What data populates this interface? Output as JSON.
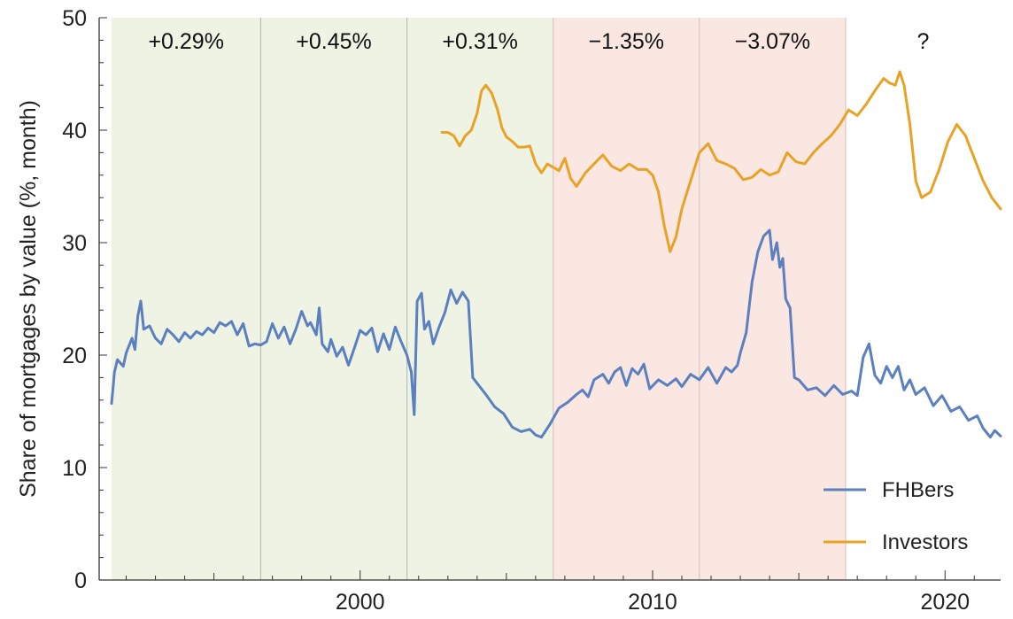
{
  "chart_data": {
    "type": "line",
    "ylabel": "Share of mortgages by value (%, month)",
    "xlim": [
      1991.5,
      2021.9
    ],
    "ylim": [
      0,
      50
    ],
    "yticks": [
      0,
      10,
      20,
      30,
      40,
      50
    ],
    "xticks_labeled": [
      2000,
      2010,
      2020
    ],
    "legend_position": "bottom-right",
    "colors": {
      "fhb": "#5b7fbf",
      "investors": "#e8a227",
      "green_band": "#eef3e4",
      "red_band": "#fbe7e2",
      "divider": "#b9c2ae"
    },
    "bands": [
      {
        "start": 1991.5,
        "end": 1996.6,
        "label": "+0.29%",
        "tone": "green"
      },
      {
        "start": 1996.6,
        "end": 2001.6,
        "label": "+0.45%",
        "tone": "green"
      },
      {
        "start": 2001.6,
        "end": 2006.6,
        "label": "+0.31%",
        "tone": "green"
      },
      {
        "start": 2006.6,
        "end": 2011.6,
        "label": "−1.35%",
        "tone": "red"
      },
      {
        "start": 2011.6,
        "end": 2016.6,
        "label": "−3.07%",
        "tone": "red"
      },
      {
        "start": 2016.6,
        "end": 2021.9,
        "label": "?",
        "tone": "none"
      }
    ],
    "series": [
      {
        "name": "FHBers",
        "color": "#5b7fbf",
        "points": [
          [
            1991.5,
            15.7
          ],
          [
            1991.6,
            18.5
          ],
          [
            1991.7,
            19.6
          ],
          [
            1991.9,
            19.0
          ],
          [
            1992.0,
            20.2
          ],
          [
            1992.2,
            21.5
          ],
          [
            1992.3,
            20.5
          ],
          [
            1992.4,
            23.5
          ],
          [
            1992.5,
            24.8
          ],
          [
            1992.6,
            22.3
          ],
          [
            1992.8,
            22.6
          ],
          [
            1993.0,
            21.5
          ],
          [
            1993.2,
            21.0
          ],
          [
            1993.4,
            22.3
          ],
          [
            1993.6,
            21.8
          ],
          [
            1993.8,
            21.2
          ],
          [
            1994.0,
            22.0
          ],
          [
            1994.2,
            21.5
          ],
          [
            1994.4,
            22.1
          ],
          [
            1994.6,
            21.8
          ],
          [
            1994.8,
            22.4
          ],
          [
            1995.0,
            22.0
          ],
          [
            1995.2,
            22.9
          ],
          [
            1995.4,
            22.6
          ],
          [
            1995.6,
            23.0
          ],
          [
            1995.8,
            21.8
          ],
          [
            1996.0,
            22.8
          ],
          [
            1996.2,
            20.8
          ],
          [
            1996.4,
            21.0
          ],
          [
            1996.6,
            20.9
          ],
          [
            1996.8,
            21.2
          ],
          [
            1997.0,
            22.8
          ],
          [
            1997.2,
            21.5
          ],
          [
            1997.4,
            22.5
          ],
          [
            1997.6,
            21.0
          ],
          [
            1997.8,
            22.3
          ],
          [
            1998.0,
            23.9
          ],
          [
            1998.2,
            22.6
          ],
          [
            1998.3,
            22.9
          ],
          [
            1998.5,
            21.8
          ],
          [
            1998.6,
            24.2
          ],
          [
            1998.7,
            21.0
          ],
          [
            1998.9,
            20.3
          ],
          [
            1999.0,
            21.4
          ],
          [
            1999.2,
            19.9
          ],
          [
            1999.4,
            20.7
          ],
          [
            1999.6,
            19.1
          ],
          [
            1999.8,
            20.6
          ],
          [
            2000.0,
            22.2
          ],
          [
            2000.2,
            21.8
          ],
          [
            2000.4,
            22.4
          ],
          [
            2000.6,
            20.3
          ],
          [
            2000.8,
            21.9
          ],
          [
            2001.0,
            20.5
          ],
          [
            2001.2,
            22.5
          ],
          [
            2001.4,
            21.2
          ],
          [
            2001.6,
            20.0
          ],
          [
            2001.75,
            18.5
          ],
          [
            2001.85,
            14.7
          ],
          [
            2001.95,
            24.8
          ],
          [
            2002.1,
            25.5
          ],
          [
            2002.2,
            22.3
          ],
          [
            2002.35,
            23.0
          ],
          [
            2002.5,
            21.0
          ],
          [
            2002.7,
            22.5
          ],
          [
            2002.9,
            23.8
          ],
          [
            2003.1,
            25.8
          ],
          [
            2003.3,
            24.6
          ],
          [
            2003.5,
            25.6
          ],
          [
            2003.7,
            24.8
          ],
          [
            2003.85,
            18.0
          ],
          [
            2004.0,
            17.5
          ],
          [
            2004.3,
            16.5
          ],
          [
            2004.6,
            15.4
          ],
          [
            2004.9,
            14.8
          ],
          [
            2005.2,
            13.6
          ],
          [
            2005.5,
            13.2
          ],
          [
            2005.8,
            13.4
          ],
          [
            2006.0,
            12.9
          ],
          [
            2006.2,
            12.7
          ],
          [
            2006.5,
            13.9
          ],
          [
            2006.8,
            15.3
          ],
          [
            2007.1,
            15.8
          ],
          [
            2007.4,
            16.5
          ],
          [
            2007.6,
            16.9
          ],
          [
            2007.8,
            16.3
          ],
          [
            2008.0,
            17.8
          ],
          [
            2008.3,
            18.3
          ],
          [
            2008.5,
            17.5
          ],
          [
            2008.7,
            18.5
          ],
          [
            2008.9,
            18.9
          ],
          [
            2009.1,
            17.3
          ],
          [
            2009.3,
            18.8
          ],
          [
            2009.5,
            18.3
          ],
          [
            2009.7,
            19.2
          ],
          [
            2009.9,
            17.0
          ],
          [
            2010.2,
            17.8
          ],
          [
            2010.5,
            17.3
          ],
          [
            2010.8,
            17.9
          ],
          [
            2011.0,
            17.2
          ],
          [
            2011.3,
            18.3
          ],
          [
            2011.6,
            17.8
          ],
          [
            2011.9,
            18.9
          ],
          [
            2012.2,
            17.5
          ],
          [
            2012.5,
            18.9
          ],
          [
            2012.7,
            18.5
          ],
          [
            2012.9,
            19.1
          ],
          [
            2013.0,
            20.2
          ],
          [
            2013.2,
            22.0
          ],
          [
            2013.4,
            26.5
          ],
          [
            2013.6,
            29.2
          ],
          [
            2013.8,
            30.6
          ],
          [
            2014.0,
            31.1
          ],
          [
            2014.1,
            28.5
          ],
          [
            2014.25,
            30.0
          ],
          [
            2014.35,
            27.8
          ],
          [
            2014.45,
            28.6
          ],
          [
            2014.55,
            25.0
          ],
          [
            2014.7,
            24.2
          ],
          [
            2014.85,
            18.0
          ],
          [
            2015.0,
            17.8
          ],
          [
            2015.3,
            16.9
          ],
          [
            2015.6,
            17.1
          ],
          [
            2015.9,
            16.4
          ],
          [
            2016.2,
            17.3
          ],
          [
            2016.5,
            16.5
          ],
          [
            2016.8,
            16.8
          ],
          [
            2017.0,
            16.4
          ],
          [
            2017.2,
            19.8
          ],
          [
            2017.4,
            21.0
          ],
          [
            2017.6,
            18.2
          ],
          [
            2017.8,
            17.5
          ],
          [
            2018.0,
            19.0
          ],
          [
            2018.2,
            18.0
          ],
          [
            2018.4,
            19.0
          ],
          [
            2018.6,
            16.9
          ],
          [
            2018.8,
            17.8
          ],
          [
            2019.0,
            16.5
          ],
          [
            2019.3,
            17.1
          ],
          [
            2019.6,
            15.5
          ],
          [
            2019.9,
            16.4
          ],
          [
            2020.2,
            15.0
          ],
          [
            2020.5,
            15.4
          ],
          [
            2020.8,
            14.2
          ],
          [
            2021.1,
            14.6
          ],
          [
            2021.3,
            13.5
          ],
          [
            2021.55,
            12.7
          ],
          [
            2021.7,
            13.3
          ],
          [
            2021.9,
            12.8
          ]
        ]
      },
      {
        "name": "Investors",
        "color": "#e8a227",
        "points": [
          [
            2002.8,
            39.8
          ],
          [
            2003.0,
            39.8
          ],
          [
            2003.2,
            39.5
          ],
          [
            2003.4,
            38.6
          ],
          [
            2003.6,
            39.5
          ],
          [
            2003.8,
            40.0
          ],
          [
            2004.0,
            41.5
          ],
          [
            2004.15,
            43.5
          ],
          [
            2004.3,
            44.0
          ],
          [
            2004.5,
            43.3
          ],
          [
            2004.7,
            41.8
          ],
          [
            2004.85,
            40.2
          ],
          [
            2005.0,
            39.4
          ],
          [
            2005.2,
            39.0
          ],
          [
            2005.4,
            38.5
          ],
          [
            2005.6,
            38.5
          ],
          [
            2005.8,
            38.6
          ],
          [
            2006.0,
            37.0
          ],
          [
            2006.2,
            36.2
          ],
          [
            2006.4,
            37.0
          ],
          [
            2006.6,
            36.7
          ],
          [
            2006.8,
            36.4
          ],
          [
            2007.0,
            37.5
          ],
          [
            2007.2,
            35.7
          ],
          [
            2007.4,
            35.0
          ],
          [
            2007.7,
            36.2
          ],
          [
            2008.0,
            37.0
          ],
          [
            2008.3,
            37.8
          ],
          [
            2008.6,
            36.8
          ],
          [
            2008.9,
            36.4
          ],
          [
            2009.2,
            37.0
          ],
          [
            2009.5,
            36.5
          ],
          [
            2009.8,
            36.5
          ],
          [
            2010.0,
            36.0
          ],
          [
            2010.2,
            34.5
          ],
          [
            2010.4,
            31.5
          ],
          [
            2010.6,
            29.2
          ],
          [
            2010.8,
            30.5
          ],
          [
            2011.0,
            33.0
          ],
          [
            2011.3,
            35.5
          ],
          [
            2011.6,
            38.0
          ],
          [
            2011.9,
            38.8
          ],
          [
            2012.2,
            37.3
          ],
          [
            2012.5,
            37.0
          ],
          [
            2012.8,
            36.6
          ],
          [
            2013.1,
            35.6
          ],
          [
            2013.4,
            35.8
          ],
          [
            2013.7,
            36.5
          ],
          [
            2014.0,
            36.0
          ],
          [
            2014.3,
            36.3
          ],
          [
            2014.6,
            38.0
          ],
          [
            2014.9,
            37.2
          ],
          [
            2015.2,
            37.0
          ],
          [
            2015.5,
            38.0
          ],
          [
            2015.8,
            38.8
          ],
          [
            2016.1,
            39.5
          ],
          [
            2016.4,
            40.5
          ],
          [
            2016.7,
            41.8
          ],
          [
            2017.0,
            41.3
          ],
          [
            2017.3,
            42.3
          ],
          [
            2017.6,
            43.5
          ],
          [
            2017.9,
            44.6
          ],
          [
            2018.1,
            44.2
          ],
          [
            2018.3,
            44.0
          ],
          [
            2018.45,
            45.2
          ],
          [
            2018.6,
            44.0
          ],
          [
            2018.8,
            40.5
          ],
          [
            2019.0,
            35.5
          ],
          [
            2019.2,
            34.0
          ],
          [
            2019.5,
            34.5
          ],
          [
            2019.8,
            36.5
          ],
          [
            2020.1,
            39.0
          ],
          [
            2020.4,
            40.5
          ],
          [
            2020.7,
            39.5
          ],
          [
            2021.0,
            37.5
          ],
          [
            2021.3,
            35.5
          ],
          [
            2021.6,
            34.0
          ],
          [
            2021.9,
            33.0
          ]
        ]
      }
    ]
  }
}
